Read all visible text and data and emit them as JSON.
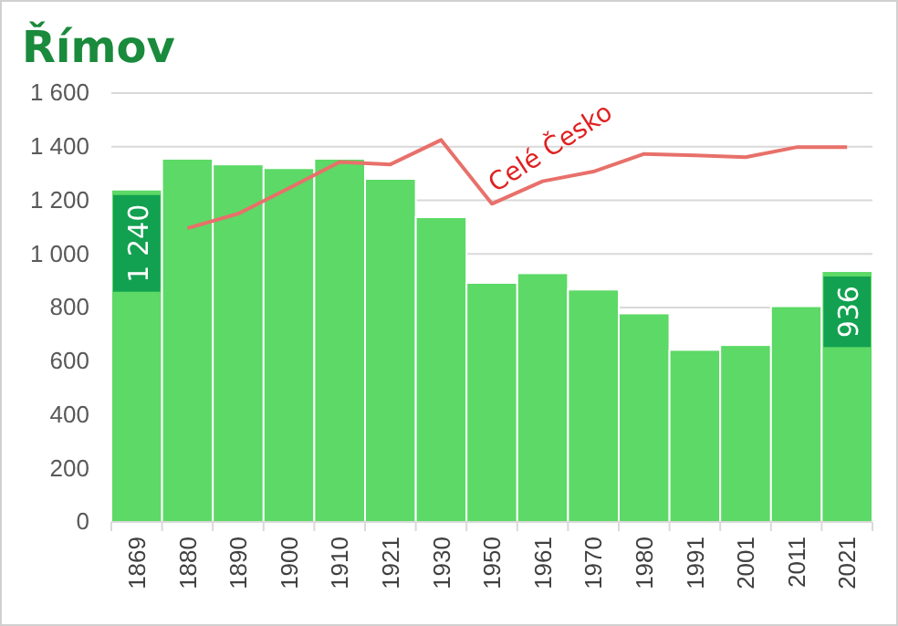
{
  "chart_data": {
    "type": "bar",
    "title": "Římov",
    "categories": [
      "1869",
      "1880",
      "1890",
      "1900",
      "1910",
      "1921",
      "1930",
      "1950",
      "1961",
      "1970",
      "1980",
      "1991",
      "2001",
      "2011",
      "2021"
    ],
    "series": [
      {
        "color": "#5cd966",
        "values": [
          1240,
          1355,
          1334,
          1320,
          1355,
          1280,
          1137,
          892,
          928,
          867,
          778,
          642,
          660,
          805,
          936
        ],
        "value_labels": [
          "1 240",
          null,
          null,
          null,
          null,
          null,
          null,
          null,
          null,
          null,
          null,
          null,
          null,
          null,
          "936"
        ]
      },
      {
        "type": "line",
        "name": "Celé Česko",
        "color": "#e8706a",
        "values": [
          null,
          1096,
          1150,
          1245,
          1343,
          1334,
          1425,
          1187,
          1271,
          1307,
          1373,
          1368,
          1361,
          1398,
          1398
        ]
      }
    ],
    "ylim": [
      0,
      1600
    ],
    "yticks": [
      {
        "value": 0,
        "label": "0"
      },
      {
        "value": 200,
        "label": "200"
      },
      {
        "value": 400,
        "label": "400"
      },
      {
        "value": 600,
        "label": "600"
      },
      {
        "value": 800,
        "label": "800"
      },
      {
        "value": 1000,
        "label": "1 000"
      },
      {
        "value": 1200,
        "label": "1 200"
      },
      {
        "value": 1400,
        "label": "1 400"
      },
      {
        "value": 1600,
        "label": "1 600"
      }
    ],
    "grid": "y",
    "legend": false
  }
}
